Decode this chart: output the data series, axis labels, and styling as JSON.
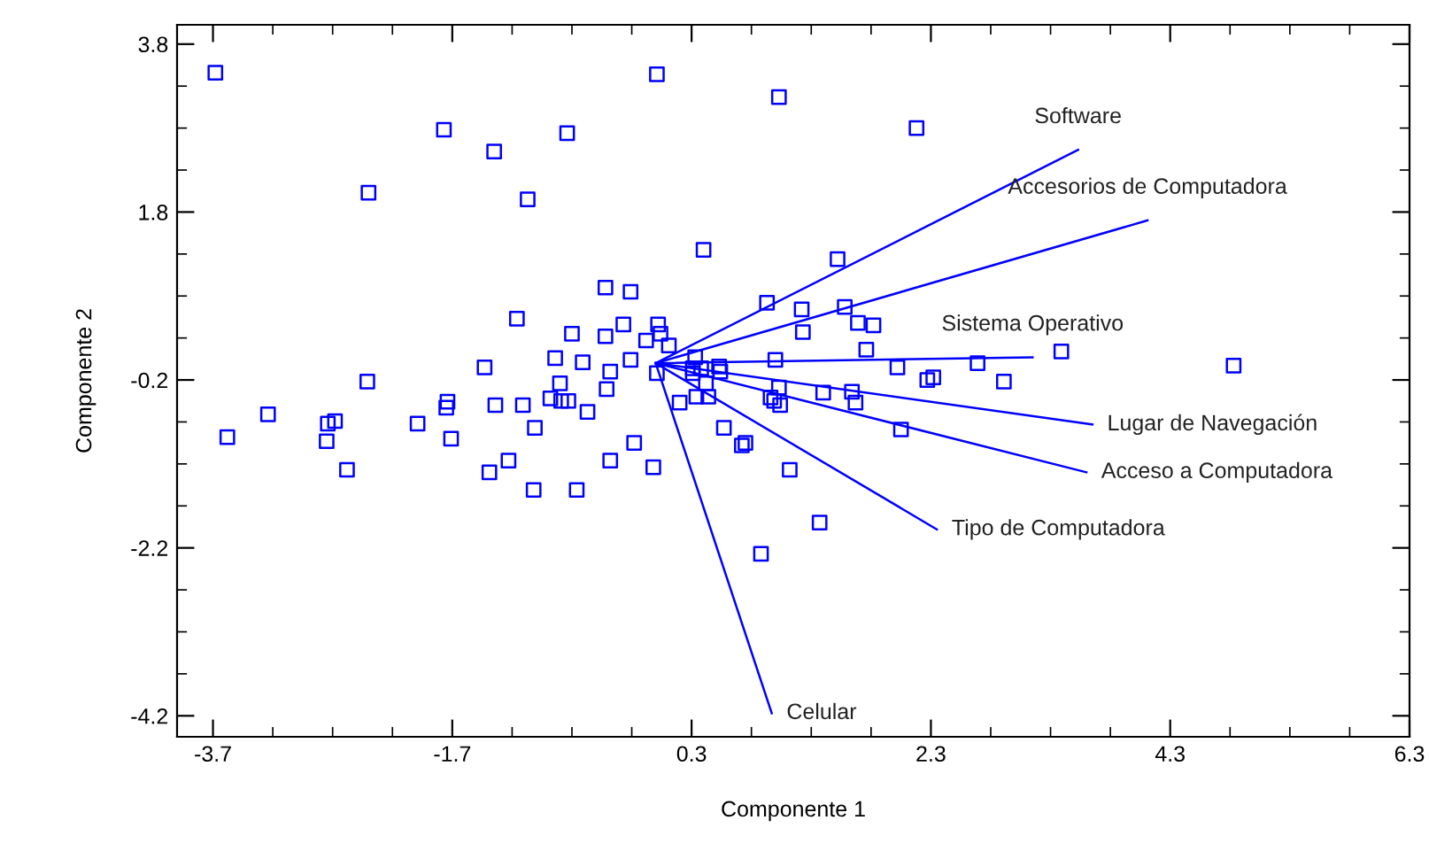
{
  "chart_data": {
    "type": "scatter",
    "xlabel": "Componente 1",
    "ylabel": "Componente 2",
    "xlim": [
      -4.0,
      6.3
    ],
    "ylim": [
      -4.45,
      4.03
    ],
    "xticks": [
      -3.7,
      -1.7,
      0.3,
      2.3,
      4.3,
      6.3
    ],
    "yticks": [
      -4.2,
      -2.2,
      -0.2,
      1.8,
      3.8
    ],
    "grid": false,
    "legend": false,
    "series": [
      {
        "color": "#0000ff",
        "marker": "square",
        "x": [
          -3.68,
          0.01,
          -1.77,
          -0.74,
          -1.35,
          -2.4,
          -1.07,
          -0.42,
          -0.21,
          -1.16,
          -0.7,
          -0.42,
          -0.27,
          0.02,
          0.04,
          -0.08,
          0.11,
          -0.84,
          -0.61,
          -0.21,
          -1.43,
          -0.38,
          0.01,
          -2.41,
          -0.8,
          -0.41,
          -3.24,
          -3.58,
          -2.74,
          -2.68,
          -2.75,
          -2.58,
          -1.99,
          -1.74,
          -1.75,
          -1.71,
          -1.34,
          -1.11,
          -0.88,
          -0.79,
          -0.73,
          -1.01,
          -0.57,
          -1.39,
          -1.23,
          -1.02,
          -0.66,
          -0.38,
          -0.18,
          -0.02,
          0.2,
          1.03,
          2.18,
          0.4,
          1.52,
          0.93,
          1.22,
          1.58,
          1.23,
          1.69,
          1.82,
          1.76,
          3.39,
          1.0,
          0.33,
          2.02,
          2.69,
          2.91,
          2.27,
          2.32,
          0.31,
          0.38,
          0.53,
          0.54,
          0.31,
          0.42,
          0.34,
          0.44,
          1.03,
          0.96,
          0.99,
          1.04,
          1.4,
          1.64,
          1.67,
          2.05,
          0.57,
          0.75,
          0.72,
          1.12,
          1.37,
          0.88,
          4.83
        ],
        "values": [
          3.46,
          3.44,
          2.78,
          2.74,
          2.52,
          2.03,
          1.95,
          0.9,
          0.85,
          0.53,
          0.35,
          0.32,
          0.46,
          0.46,
          0.35,
          0.27,
          0.21,
          0.06,
          0.01,
          0.04,
          -0.05,
          -0.1,
          -0.12,
          -0.22,
          -0.24,
          -0.31,
          -0.61,
          -0.88,
          -0.72,
          -0.69,
          -0.93,
          -1.27,
          -0.72,
          -0.46,
          -0.53,
          -0.9,
          -0.5,
          -0.5,
          -0.42,
          -0.45,
          -0.45,
          -0.77,
          -0.58,
          -1.3,
          -1.16,
          -1.51,
          -1.51,
          -1.16,
          -0.95,
          -1.24,
          -0.47,
          3.17,
          2.8,
          1.35,
          1.24,
          0.72,
          0.64,
          0.67,
          0.37,
          0.48,
          0.45,
          0.16,
          0.14,
          0.04,
          0.07,
          -0.05,
          0.0,
          -0.22,
          -0.2,
          -0.17,
          -0.06,
          -0.06,
          -0.04,
          -0.1,
          -0.12,
          -0.24,
          -0.4,
          -0.4,
          -0.29,
          -0.41,
          -0.45,
          -0.5,
          -0.35,
          -0.34,
          -0.47,
          -0.79,
          -0.77,
          -0.95,
          -0.98,
          -1.27,
          -1.9,
          -2.27,
          -0.03
        ]
      },
      {
        "type": "line",
        "name": "Software",
        "color": "#0000ff",
        "x": [
          0,
          3.53
        ],
        "values": [
          0,
          2.54
        ]
      },
      {
        "type": "line",
        "name": "Accesorios de Computadora",
        "color": "#0000ff",
        "x": [
          0,
          4.11
        ],
        "values": [
          0,
          1.7
        ]
      },
      {
        "type": "line",
        "name": "Sistema Operativo",
        "color": "#0000ff",
        "x": [
          0,
          3.15
        ],
        "values": [
          0,
          0.07
        ]
      },
      {
        "type": "line",
        "name": "Lugar de Navegación",
        "color": "#0000ff",
        "x": [
          0,
          3.65
        ],
        "values": [
          0,
          -0.73
        ]
      },
      {
        "type": "line",
        "name": "Acceso a Computadora",
        "color": "#0000ff",
        "x": [
          0,
          3.6
        ],
        "values": [
          0,
          -1.3
        ]
      },
      {
        "type": "line",
        "name": "Tipo de Computadora",
        "color": "#0000ff",
        "x": [
          0,
          2.35
        ],
        "values": [
          0,
          -1.98
        ]
      },
      {
        "type": "line",
        "name": "Celular",
        "color": "#0000ff",
        "x": [
          0,
          0.97
        ],
        "values": [
          0,
          -4.17
        ]
      }
    ]
  }
}
